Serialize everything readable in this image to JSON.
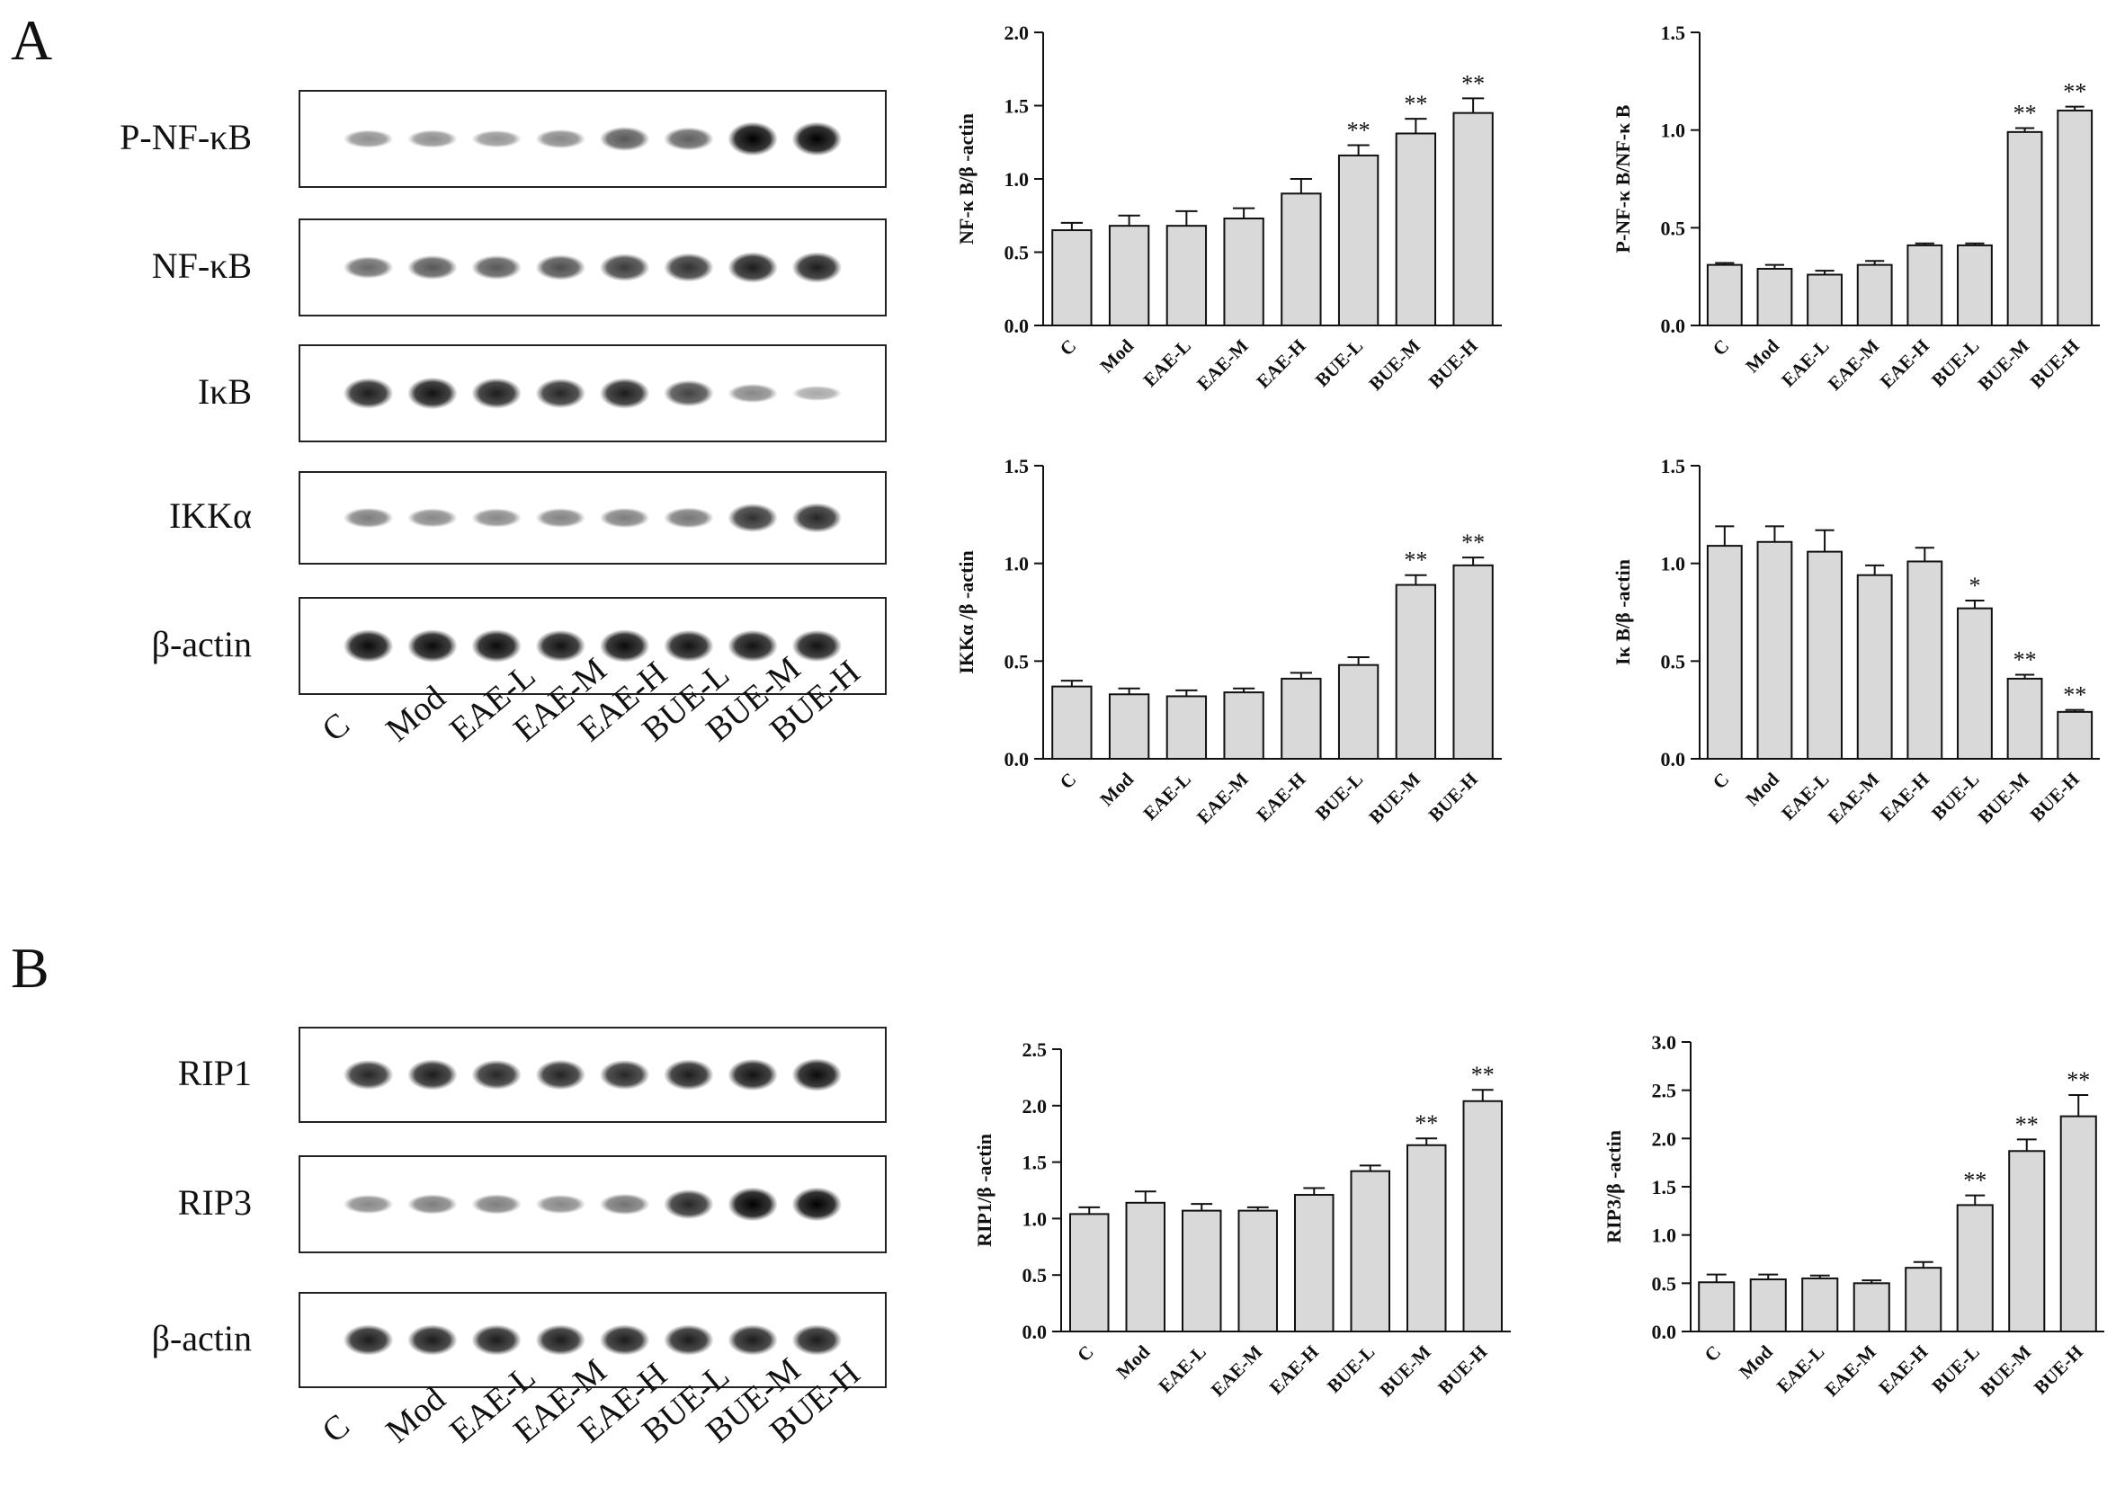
{
  "figure": {
    "panel_a": "A",
    "panel_b": "B",
    "lanes": [
      "C",
      "Mod",
      "EAE-L",
      "EAE-M",
      "EAE-H",
      "BUE-L",
      "BUE-M",
      "BUE-H"
    ],
    "blots_a": [
      {
        "label": "P-NF-κB",
        "intensities": [
          0.25,
          0.25,
          0.22,
          0.3,
          0.55,
          0.5,
          1.0,
          1.0
        ]
      },
      {
        "label": "NF-κB",
        "intensities": [
          0.45,
          0.55,
          0.55,
          0.6,
          0.7,
          0.75,
          0.85,
          0.85
        ]
      },
      {
        "label": "IκB",
        "intensities": [
          0.85,
          0.9,
          0.85,
          0.8,
          0.85,
          0.65,
          0.3,
          0.12
        ]
      },
      {
        "label": "IKKα",
        "intensities": [
          0.35,
          0.3,
          0.3,
          0.32,
          0.35,
          0.38,
          0.75,
          0.8
        ]
      },
      {
        "label": "β-actin",
        "intensities": [
          0.95,
          0.95,
          0.95,
          0.9,
          0.95,
          0.9,
          0.9,
          0.9
        ]
      }
    ],
    "blots_b": [
      {
        "label": "RIP1",
        "intensities": [
          0.8,
          0.85,
          0.8,
          0.82,
          0.8,
          0.85,
          0.9,
          0.95
        ]
      },
      {
        "label": "RIP3",
        "intensities": [
          0.3,
          0.35,
          0.35,
          0.3,
          0.4,
          0.8,
          1.0,
          1.0
        ]
      },
      {
        "label": "β-actin",
        "intensities": [
          0.85,
          0.85,
          0.85,
          0.85,
          0.85,
          0.85,
          0.85,
          0.85
        ]
      }
    ]
  },
  "chart_data": [
    {
      "type": "bar",
      "categories": [
        "C",
        "Mod",
        "EAE-L",
        "EAE-M",
        "EAE-H",
        "BUE-L",
        "BUE-M",
        "BUE-H"
      ],
      "values": [
        0.65,
        0.68,
        0.68,
        0.73,
        0.9,
        1.16,
        1.31,
        1.45
      ],
      "errors": [
        0.05,
        0.07,
        0.1,
        0.07,
        0.1,
        0.07,
        0.1,
        0.1
      ],
      "significance": [
        "",
        "",
        "",
        "",
        "",
        "**",
        "**",
        "**"
      ],
      "ylabel": "NF-κ B/β -actin",
      "ylim": [
        0,
        2.0
      ],
      "yticks": [
        "0.0",
        "0.5",
        "1.0",
        "1.5",
        "2.0"
      ]
    },
    {
      "type": "bar",
      "categories": [
        "C",
        "Mod",
        "EAE-L",
        "EAE-M",
        "EAE-H",
        "BUE-L",
        "BUE-M",
        "BUE-H"
      ],
      "values": [
        0.31,
        0.29,
        0.26,
        0.31,
        0.41,
        0.41,
        0.99,
        1.1
      ],
      "errors": [
        0.01,
        0.02,
        0.02,
        0.02,
        0.01,
        0.01,
        0.02,
        0.02
      ],
      "significance": [
        "",
        "",
        "",
        "",
        "",
        "",
        "**",
        "**"
      ],
      "ylabel": "P-NF-κ B/NF-κ B",
      "ylim": [
        0,
        1.5
      ],
      "yticks": [
        "0.0",
        "0.5",
        "1.0",
        "1.5"
      ]
    },
    {
      "type": "bar",
      "categories": [
        "C",
        "Mod",
        "EAE-L",
        "EAE-M",
        "EAE-H",
        "BUE-L",
        "BUE-M",
        "BUE-H"
      ],
      "values": [
        0.37,
        0.33,
        0.32,
        0.34,
        0.41,
        0.48,
        0.89,
        0.99
      ],
      "errors": [
        0.03,
        0.03,
        0.03,
        0.02,
        0.03,
        0.04,
        0.05,
        0.04
      ],
      "significance": [
        "",
        "",
        "",
        "",
        "",
        "",
        "**",
        "**"
      ],
      "ylabel": "IKKα /β -actin",
      "ylim": [
        0,
        1.5
      ],
      "yticks": [
        "0.0",
        "0.5",
        "1.0",
        "1.5"
      ]
    },
    {
      "type": "bar",
      "categories": [
        "C",
        "Mod",
        "EAE-L",
        "EAE-M",
        "EAE-H",
        "BUE-L",
        "BUE-M",
        "BUE-H"
      ],
      "values": [
        1.09,
        1.11,
        1.06,
        0.94,
        1.01,
        0.77,
        0.41,
        0.24
      ],
      "errors": [
        0.1,
        0.08,
        0.11,
        0.05,
        0.07,
        0.04,
        0.02,
        0.01
      ],
      "significance": [
        "",
        "",
        "",
        "",
        "",
        "*",
        "**",
        "**"
      ],
      "ylabel": "Iκ B/β -actin",
      "ylim": [
        0,
        1.5
      ],
      "yticks": [
        "0.0",
        "0.5",
        "1.0",
        "1.5"
      ]
    },
    {
      "type": "bar",
      "categories": [
        "C",
        "Mod",
        "EAE-L",
        "EAE-M",
        "EAE-H",
        "BUE-L",
        "BUE-M",
        "BUE-H"
      ],
      "values": [
        1.04,
        1.14,
        1.07,
        1.07,
        1.21,
        1.42,
        1.65,
        2.04
      ],
      "errors": [
        0.06,
        0.1,
        0.06,
        0.03,
        0.06,
        0.05,
        0.06,
        0.1
      ],
      "significance": [
        "",
        "",
        "",
        "",
        "",
        "",
        "**",
        "**"
      ],
      "ylabel": "RIP1/β -actin",
      "ylim": [
        0,
        2.5
      ],
      "yticks": [
        "0.0",
        "0.5",
        "1.0",
        "1.5",
        "2.0",
        "2.5"
      ]
    },
    {
      "type": "bar",
      "categories": [
        "C",
        "Mod",
        "EAE-L",
        "EAE-M",
        "EAE-H",
        "BUE-L",
        "BUE-M",
        "BUE-H"
      ],
      "values": [
        0.51,
        0.54,
        0.55,
        0.5,
        0.66,
        1.31,
        1.87,
        2.23
      ],
      "errors": [
        0.08,
        0.05,
        0.03,
        0.03,
        0.06,
        0.1,
        0.12,
        0.22
      ],
      "significance": [
        "",
        "",
        "",
        "",
        "",
        "**",
        "**",
        "**"
      ],
      "ylabel": "RIP3/β -actin",
      "ylim": [
        0,
        3.0
      ],
      "yticks": [
        "0.0",
        "0.5",
        "1.0",
        "1.5",
        "2.0",
        "2.5",
        "3.0"
      ]
    }
  ]
}
